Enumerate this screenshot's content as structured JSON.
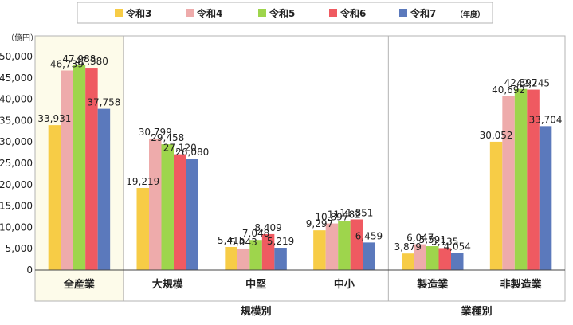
{
  "chart_data": {
    "type": "bar",
    "unit_label": "（億円）",
    "categories": [
      "全産業",
      "大規模",
      "中堅",
      "中小",
      "製造業",
      "非製造業"
    ],
    "groups": [
      {
        "label": "規模別",
        "categories": [
          "大規模",
          "中堅",
          "中小"
        ]
      },
      {
        "label": "業種別",
        "categories": [
          "製造業",
          "非製造業"
        ]
      }
    ],
    "series": [
      {
        "name": "令和3",
        "color": "#f7cc46",
        "values": [
          33931,
          19219,
          5415,
          9297,
          3879,
          30052
        ],
        "labels": [
          "33,931",
          "19,219",
          "5,415",
          "9,297",
          "3,879",
          "30,052"
        ]
      },
      {
        "name": "令和4",
        "color": "#eeabab",
        "values": [
          46739,
          30799,
          5043,
          10897,
          6047,
          40692
        ],
        "labels": [
          "46,739",
          "30,799",
          "5,043",
          "10,897",
          "6,047",
          "40,692"
        ]
      },
      {
        "name": "令和5",
        "color": "#9ed54c",
        "values": [
          47988,
          29458,
          7048,
          11482,
          5591,
          42397
        ],
        "labels": [
          "47,988",
          "29,458",
          "7,048",
          "11,482",
          "5,591",
          "42,397"
        ]
      },
      {
        "name": "令和6",
        "color": "#ef5a61",
        "values": [
          47380,
          27120,
          8409,
          11851,
          5135,
          42245
        ],
        "labels": [
          "47,380",
          "27,120",
          "8,409",
          "11,851",
          "5,135",
          "42,245"
        ]
      },
      {
        "name": "令和7",
        "color": "#5b79bc",
        "values": [
          37758,
          26080,
          5219,
          6459,
          4054,
          33704
        ],
        "labels": [
          "37,758",
          "26,080",
          "5,219",
          "6,459",
          "4,054",
          "33,704"
        ]
      }
    ],
    "legend_suffix": "（年度）",
    "legend_position": "top",
    "ylim": [
      0,
      50000
    ],
    "yticks": [
      "0",
      "5,000",
      "10,000",
      "15,000",
      "20,000",
      "25,000",
      "30,000",
      "35,000",
      "40,000",
      "45,000",
      "50,000"
    ],
    "grid": false
  }
}
